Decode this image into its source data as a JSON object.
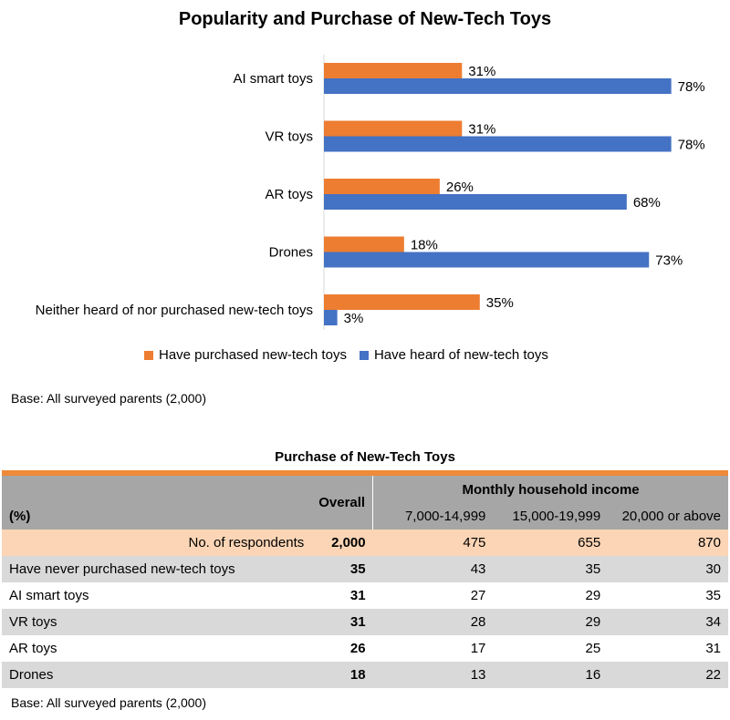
{
  "chart_data": {
    "type": "bar",
    "orientation": "horizontal",
    "title": "Popularity and Purchase of New-Tech Toys",
    "categories": [
      "AI smart toys",
      "VR toys",
      "AR toys",
      "Drones",
      "Neither heard of nor purchased new-tech toys"
    ],
    "series": [
      {
        "name": "Have purchased new-tech toys",
        "values": [
          31,
          31,
          26,
          18,
          35
        ],
        "labels": [
          "31%",
          "31%",
          "26%",
          "18%",
          "35%"
        ],
        "color": "#ed7d31"
      },
      {
        "name": "Have heard of new-tech toys",
        "values": [
          78,
          78,
          68,
          73,
          3
        ],
        "labels": [
          "78%",
          "78%",
          "68%",
          "73%",
          "3%"
        ],
        "color": "#4472c4"
      }
    ],
    "xlim": [
      0,
      100
    ],
    "grid": false,
    "legend_position": "bottom"
  },
  "chart_base_note": "Base: All surveyed parents (2,000)",
  "table": {
    "title": "Purchase of New-Tech Toys",
    "unit_label": "(%)",
    "overall_label": "Overall",
    "income_label": "Monthly household income",
    "income_columns": [
      "7,000-14,999",
      "15,000-19,999",
      "20,000 or above"
    ],
    "respondents": {
      "label": "No. of respondents",
      "overall": "2,000",
      "values": [
        "475",
        "655",
        "870"
      ]
    },
    "rows": [
      {
        "label": "Have never purchased new-tech toys",
        "overall": "35",
        "values": [
          "43",
          "35",
          "30"
        ]
      },
      {
        "label": "AI smart toys",
        "overall": "31",
        "values": [
          "27",
          "29",
          "35"
        ]
      },
      {
        "label": "VR toys",
        "overall": "31",
        "values": [
          "28",
          "29",
          "34"
        ]
      },
      {
        "label": "AR toys",
        "overall": "26",
        "values": [
          "17",
          "25",
          "31"
        ]
      },
      {
        "label": "Drones",
        "overall": "18",
        "values": [
          "13",
          "16",
          "22"
        ]
      }
    ],
    "base_note": "Base: All surveyed parents (2,000)"
  }
}
